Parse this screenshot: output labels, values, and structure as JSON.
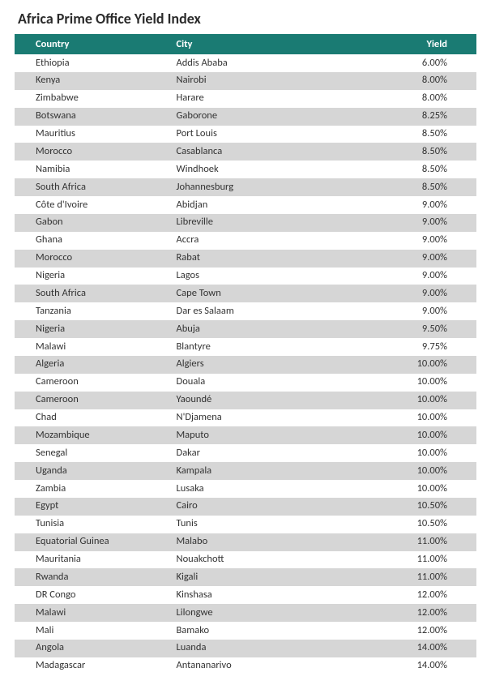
{
  "title": "Africa Prime Office Yield Index",
  "table": {
    "header_bg": "#1a7b73",
    "header_fg": "#ffffff",
    "row_odd_bg": "#ffffff",
    "row_even_bg": "#d6d6d6",
    "columns": [
      "Country",
      "City",
      "Yield"
    ],
    "rows": [
      {
        "country": "Ethiopia",
        "city": "Addis Ababa",
        "yield": "6.00%"
      },
      {
        "country": "Kenya",
        "city": "Nairobi",
        "yield": "8.00%"
      },
      {
        "country": "Zimbabwe",
        "city": "Harare",
        "yield": "8.00%"
      },
      {
        "country": "Botswana",
        "city": "Gaborone",
        "yield": "8.25%"
      },
      {
        "country": "Mauritius",
        "city": "Port Louis",
        "yield": "8.50%"
      },
      {
        "country": "Morocco",
        "city": "Casablanca",
        "yield": "8.50%"
      },
      {
        "country": "Namibia",
        "city": "Windhoek",
        "yield": "8.50%"
      },
      {
        "country": "South Africa",
        "city": "Johannesburg",
        "yield": "8.50%"
      },
      {
        "country": "Côte d'Ivoire",
        "city": "Abidjan",
        "yield": "9.00%"
      },
      {
        "country": "Gabon",
        "city": "Libreville",
        "yield": "9.00%"
      },
      {
        "country": "Ghana",
        "city": "Accra",
        "yield": "9.00%"
      },
      {
        "country": "Morocco",
        "city": "Rabat",
        "yield": "9.00%"
      },
      {
        "country": "Nigeria",
        "city": "Lagos",
        "yield": "9.00%"
      },
      {
        "country": "South Africa",
        "city": "Cape Town",
        "yield": "9.00%"
      },
      {
        "country": "Tanzania",
        "city": "Dar es Salaam",
        "yield": "9.00%"
      },
      {
        "country": "Nigeria",
        "city": "Abuja",
        "yield": "9.50%"
      },
      {
        "country": "Malawi",
        "city": "Blantyre",
        "yield": "9.75%"
      },
      {
        "country": "Algeria",
        "city": "Algiers",
        "yield": "10.00%"
      },
      {
        "country": "Cameroon",
        "city": "Douala",
        "yield": "10.00%"
      },
      {
        "country": "Cameroon",
        "city": "Yaoundé",
        "yield": "10.00%"
      },
      {
        "country": "Chad",
        "city": "N'Djamena",
        "yield": "10.00%"
      },
      {
        "country": "Mozambique",
        "city": "Maputo",
        "yield": "10.00%"
      },
      {
        "country": "Senegal",
        "city": "Dakar",
        "yield": "10.00%"
      },
      {
        "country": "Uganda",
        "city": "Kampala",
        "yield": "10.00%"
      },
      {
        "country": "Zambia",
        "city": "Lusaka",
        "yield": "10.00%"
      },
      {
        "country": "Egypt",
        "city": "Cairo",
        "yield": "10.50%"
      },
      {
        "country": "Tunisia",
        "city": "Tunis",
        "yield": "10.50%"
      },
      {
        "country": "Equatorial Guinea",
        "city": "Malabo",
        "yield": "11.00%"
      },
      {
        "country": "Mauritania",
        "city": "Nouakchott",
        "yield": "11.00%"
      },
      {
        "country": "Rwanda",
        "city": "Kigali",
        "yield": "11.00%"
      },
      {
        "country": "DR Congo",
        "city": "Kinshasa",
        "yield": "12.00%"
      },
      {
        "country": "Malawi",
        "city": "Lilongwe",
        "yield": "12.00%"
      },
      {
        "country": "Mali",
        "city": "Bamako",
        "yield": "12.00%"
      },
      {
        "country": "Angola",
        "city": "Luanda",
        "yield": "14.00%"
      },
      {
        "country": "Madagascar",
        "city": "Antananarivo",
        "yield": "14.00%"
      }
    ]
  }
}
